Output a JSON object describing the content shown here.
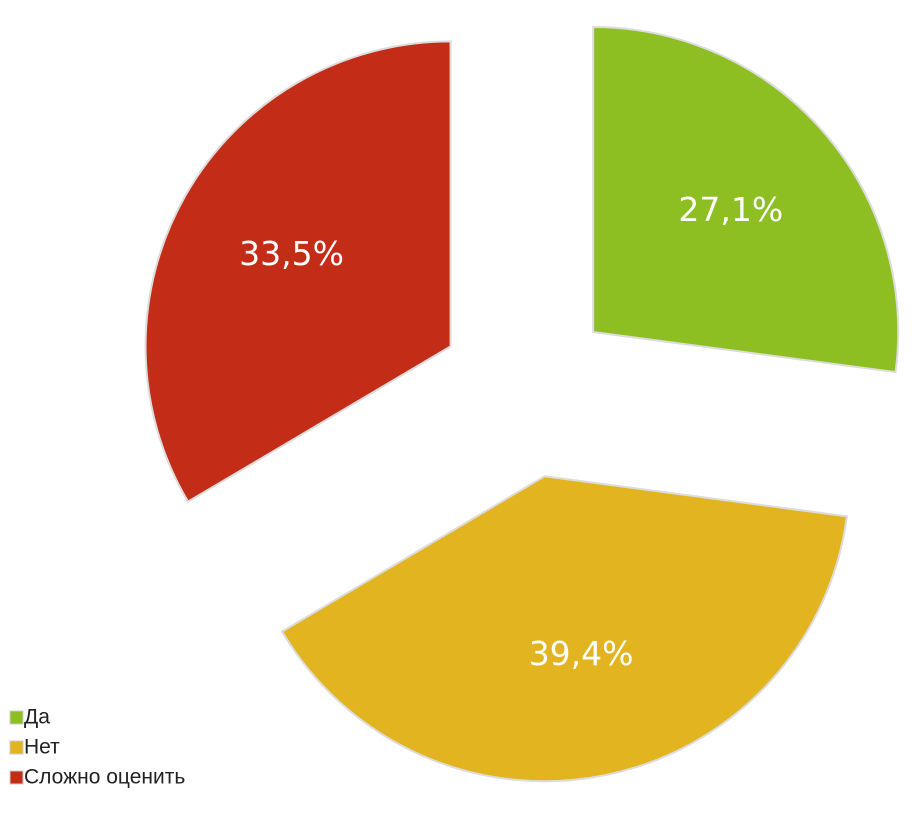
{
  "chart_data": {
    "type": "pie",
    "categories": [
      "Да",
      "Нет",
      "Сложно оценить"
    ],
    "values": [
      27.1,
      39.4,
      33.5
    ],
    "value_labels": [
      "27,1%",
      "39,4%",
      "33,5%"
    ],
    "colors": [
      "#8dbf22",
      "#e2b41f",
      "#c32c16"
    ],
    "legend": "bottom-left",
    "exploded": true
  }
}
